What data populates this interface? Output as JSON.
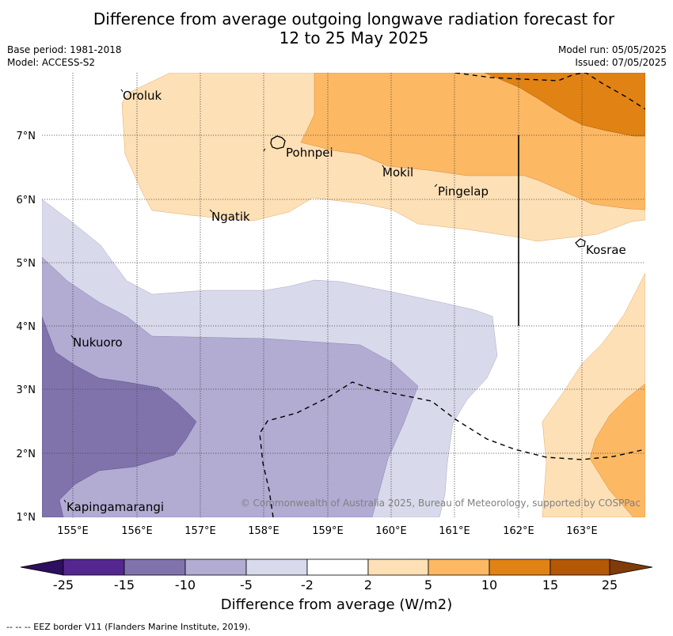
{
  "title_line1": "Difference from average outgoing longwave radiation forecast for",
  "title_line2": "12 to 25 May 2025",
  "base_period": "Base period: 1981-2018",
  "model": "Model: ACCESS-S2",
  "model_run": "Model run: 05/05/2025",
  "issued": "Issued: 07/05/2025",
  "credit": "© Commonwealth of Australia 2025, Bureau of Meteorology, supported by COSPPac",
  "lon_labels": [
    "155°E",
    "156°E",
    "157°E",
    "158°E",
    "159°E",
    "160°E",
    "161°E",
    "162°E",
    "163°E"
  ],
  "lat_labels": [
    "1°N",
    "2°N",
    "3°N",
    "4°N",
    "5°N",
    "6°N",
    "7°N"
  ],
  "places": [
    "Oroluk",
    "Pohnpei",
    "Mokil",
    "Pingelap",
    "Ngatik",
    "Kosrae",
    "Nukuoro",
    "Kapingamarangi"
  ],
  "colorbar": {
    "ticks": [
      "-25",
      "-15",
      "-10",
      "-5",
      "-2",
      "2",
      "5",
      "10",
      "15",
      "25"
    ],
    "colors": [
      "#2e0e5e",
      "#54278f",
      "#8073ac",
      "#b2abd2",
      "#d8daeb",
      "#ffffff",
      "#fee0b6",
      "#fdb863",
      "#e08214",
      "#b35806",
      "#7f3b08"
    ],
    "label": "Difference from average (W/m2)"
  },
  "footer": "--  --  -- EEZ border V11 (Flanders Marine Institute, 2019)."
}
